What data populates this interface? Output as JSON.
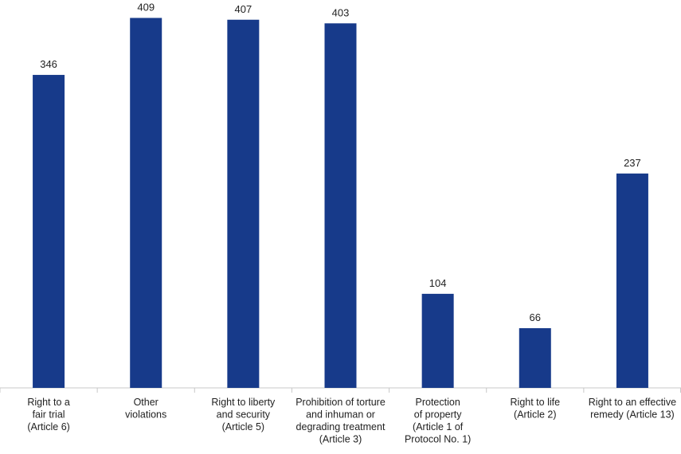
{
  "chart_data": {
    "type": "bar",
    "categories": [
      [
        "Right to a",
        "fair trial",
        "(Article 6)"
      ],
      [
        "Other",
        "violations"
      ],
      [
        "Right to liberty",
        "and security",
        "(Article 5)"
      ],
      [
        "Prohibition of torture",
        "and inhuman or",
        "degrading treatment",
        "(Article 3)"
      ],
      [
        "Protection",
        "of property",
        "(Article 1 of",
        "Protocol No. 1)"
      ],
      [
        "Right to life",
        "(Article 2)"
      ],
      [
        "Right to an effective",
        "remedy (Article 13)"
      ]
    ],
    "values": [
      346,
      409,
      407,
      403,
      104,
      66,
      237
    ],
    "data_labels": [
      "346",
      "409",
      "407",
      "403",
      "104",
      "66",
      "237"
    ],
    "title": "",
    "xlabel": "",
    "ylabel": "",
    "ylim": [
      0,
      420
    ],
    "grid": false,
    "legend": "none",
    "colors": {
      "bar": "#173a8a",
      "axis": "#c8c8c8",
      "text": "#222222"
    }
  }
}
